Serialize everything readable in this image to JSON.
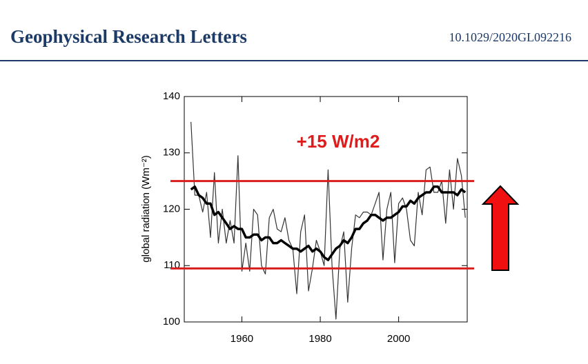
{
  "header": {
    "journal": "Geophysical Research Letters",
    "doi": "10.1029/2020GL092216"
  },
  "chart_data": {
    "type": "line",
    "ylabel": "global radiation (Wm⁻²)",
    "annotation": "+15 W/m2",
    "x": [
      1947,
      1948,
      1949,
      1950,
      1951,
      1952,
      1953,
      1954,
      1955,
      1956,
      1957,
      1958,
      1959,
      1960,
      1961,
      1962,
      1963,
      1964,
      1965,
      1966,
      1967,
      1968,
      1969,
      1970,
      1971,
      1972,
      1973,
      1974,
      1975,
      1976,
      1977,
      1978,
      1979,
      1980,
      1981,
      1982,
      1983,
      1984,
      1985,
      1986,
      1987,
      1988,
      1989,
      1990,
      1991,
      1992,
      1993,
      1994,
      1995,
      1996,
      1997,
      1998,
      1999,
      2000,
      2001,
      2002,
      2003,
      2004,
      2005,
      2006,
      2007,
      2008,
      2009,
      2010,
      2011,
      2012,
      2013,
      2014,
      2015,
      2016,
      2017
    ],
    "series": [
      {
        "color": "#333333",
        "width": 1.2,
        "values": [
          135.5,
          122.5,
          122.5,
          119.5,
          123,
          115,
          126.5,
          114,
          120,
          114,
          118,
          114,
          129.5,
          109,
          114,
          109,
          120,
          119,
          110,
          108.5,
          118.5,
          120,
          116.5,
          116,
          118.5,
          114.5,
          113,
          105,
          116,
          119,
          105.5,
          109.5,
          114.5,
          112.5,
          110,
          127,
          110,
          100.5,
          113,
          116,
          103.5,
          113,
          119,
          118.5,
          119.5,
          119.5,
          119,
          121,
          123,
          111,
          120,
          123,
          110.5,
          121,
          122,
          120,
          114.5,
          113.5,
          123,
          119,
          127,
          127.5,
          123,
          123,
          125,
          117.5,
          127,
          120,
          129,
          126,
          118.5
        ]
      },
      {
        "color": "#000000",
        "width": 3.5,
        "values": [
          123.5,
          124,
          122.5,
          122,
          121,
          121,
          119,
          119.5,
          118.5,
          117.5,
          116.5,
          117,
          116.5,
          116.5,
          115,
          115,
          115.5,
          115.5,
          114.5,
          115,
          115,
          114,
          114,
          114.5,
          114,
          113.5,
          113,
          113,
          112.5,
          113,
          113.5,
          112.5,
          113,
          112.5,
          111.5,
          111,
          112,
          113,
          113.5,
          114.5,
          114,
          115,
          116.5,
          116.5,
          117.5,
          118,
          119,
          119,
          118.5,
          118,
          118.5,
          118.5,
          119,
          119.5,
          120.5,
          120.5,
          121.5,
          121,
          122,
          122.5,
          123,
          123,
          124,
          124,
          123,
          123,
          123,
          123,
          122.5,
          123.5,
          123
        ]
      }
    ],
    "hlines": [
      125,
      109.5
    ],
    "hline_color": "#d91c1c",
    "xlim": [
      1945.3,
      2017.5
    ],
    "ylim": [
      100,
      140
    ],
    "xticks": [
      1960,
      1980,
      2000
    ],
    "yticks": [
      100,
      110,
      120,
      130,
      140
    ]
  }
}
